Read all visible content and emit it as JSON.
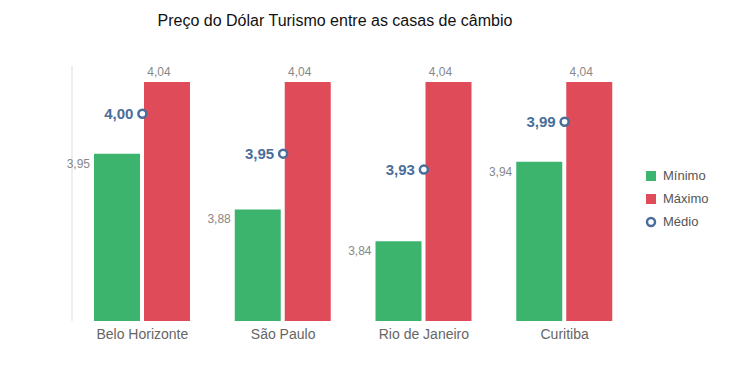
{
  "chart_data": {
    "type": "bar",
    "title": "Preço do Dólar Turismo entre as casas de câmbio",
    "categories": [
      "Belo Horizonte",
      "São Paulo",
      "Rio de Janeiro",
      "Curitiba"
    ],
    "series": [
      {
        "name": "Mínimo",
        "color": "#3cb46e",
        "values": [
          3.95,
          3.88,
          3.84,
          3.94
        ],
        "value_labels": [
          "3,95",
          "3,88",
          "3,84",
          "3,94"
        ]
      },
      {
        "name": "Máximo",
        "color": "#e04b5a",
        "values": [
          4.04,
          4.04,
          4.04,
          4.04
        ],
        "value_labels": [
          "4,04",
          "4,04",
          "4,04",
          "4,04"
        ]
      },
      {
        "name": "Médio",
        "type": "scatter",
        "marker": "circle",
        "color": "#4a6d99",
        "values": [
          4.0,
          3.95,
          3.93,
          3.99
        ],
        "value_labels": [
          "4,00",
          "3,95",
          "3,93",
          "3,99"
        ]
      }
    ],
    "ylim": [
      3.74,
      4.06
    ],
    "yticks": [],
    "tick_labels": "x",
    "legend": "right",
    "data_labels": true,
    "grid": false
  }
}
